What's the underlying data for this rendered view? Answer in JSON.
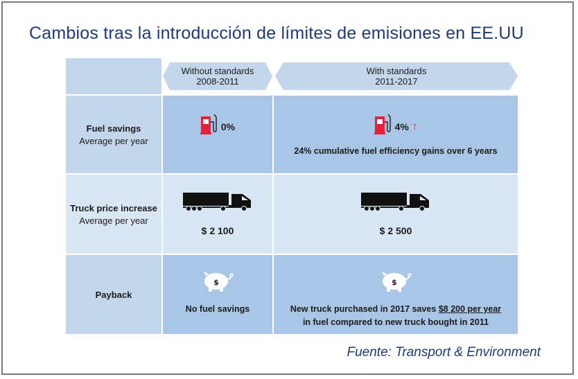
{
  "title": "Cambios tras la introducción de límites de emisiones en EE.UU",
  "source": "Fuente: Transport & Environment",
  "columns": [
    {
      "title": "Without standards",
      "period": "2008-2011"
    },
    {
      "title": "With standards",
      "period": "2011-2017"
    }
  ],
  "rows": {
    "fuel": {
      "label": "Fuel savings",
      "sublabel": "Average per year",
      "without": {
        "value": "0%"
      },
      "with": {
        "value": "4%",
        "trend": "↑",
        "note": "24% cumulative fuel efficiency gains over 6 years"
      }
    },
    "price": {
      "label": "Truck price increase",
      "sublabel": "Average per year",
      "without": {
        "value": "$ 2 100"
      },
      "with": {
        "value": "$ 2 500"
      }
    },
    "payback": {
      "label": "Payback",
      "without": {
        "note": "No fuel savings"
      },
      "with": {
        "line1_pre": "New truck purchased in 2017 saves ",
        "line1_highlight": "$8 200 per year",
        "line2": "in fuel compared to new truck bought in 2011"
      }
    }
  },
  "icons": {
    "fuel": "fuel-pump-icon",
    "truck": "truck-icon",
    "piggy": "piggy-bank-icon",
    "trend": "arrow-up-icon"
  },
  "colors": {
    "title": "#1d3b7a",
    "accent_red": "#e8213a",
    "cell_light": "#d9e6f4",
    "cell_mid": "#c3d6ec",
    "cell_dark": "#a9c6e7"
  }
}
